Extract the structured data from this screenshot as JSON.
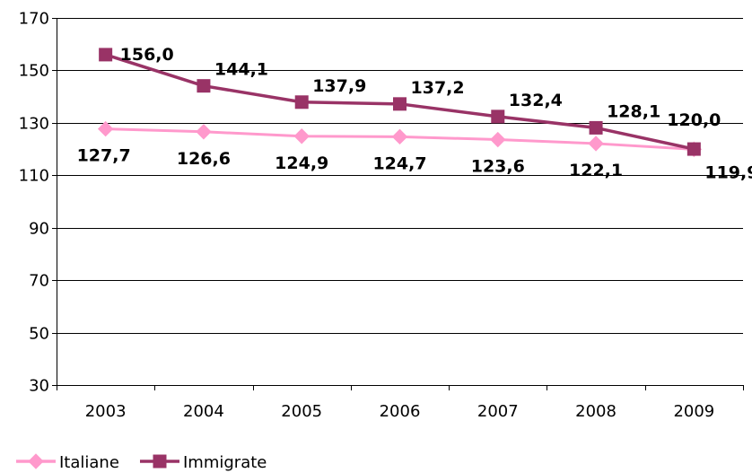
{
  "chart_data": {
    "type": "line",
    "title": "",
    "xlabel": "",
    "ylabel": "",
    "categories": [
      "2003",
      "2004",
      "2005",
      "2006",
      "2007",
      "2008",
      "2009"
    ],
    "ylim": [
      30,
      170
    ],
    "yticks": [
      30,
      50,
      70,
      90,
      110,
      130,
      150,
      170
    ],
    "grid": true,
    "legend": "bottom-left",
    "series": [
      {
        "name": "Italiane",
        "values": [
          127.7,
          126.6,
          124.9,
          124.7,
          123.6,
          122.1,
          119.9
        ],
        "labels": [
          "127,7",
          "126,6",
          "124,9",
          "124,7",
          "123,6",
          "122,1",
          "119,9"
        ],
        "color": "#FF99CC",
        "marker": "diamond"
      },
      {
        "name": "Immigrate",
        "values": [
          156.0,
          144.1,
          137.9,
          137.2,
          132.4,
          128.1,
          120.0
        ],
        "labels": [
          "156,0",
          "144,1",
          "137,9",
          "137,2",
          "132,4",
          "128,1",
          "120,0"
        ],
        "color": "#993366",
        "marker": "square"
      }
    ]
  }
}
